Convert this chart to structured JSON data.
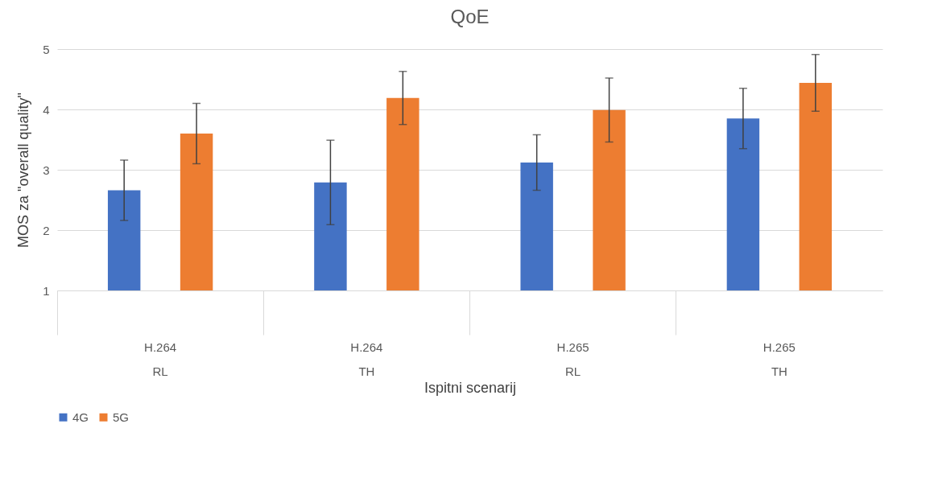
{
  "chart_data": {
    "type": "bar",
    "title": "QoE",
    "xlabel": "Ispitni scenarij",
    "ylabel": "MOS za \"overall quality\"",
    "categories": [
      "H.264\nRL",
      "H.264\nTH",
      "H.265\nRL",
      "H.265\nTH"
    ],
    "series": [
      {
        "name": "4G",
        "color": "#4472c4",
        "values": [
          2.66,
          2.79,
          3.12,
          3.85
        ],
        "errors": [
          0.5,
          0.7,
          0.46,
          0.5
        ]
      },
      {
        "name": "5G",
        "color": "#ed7d31",
        "values": [
          3.6,
          4.19,
          3.99,
          4.44
        ],
        "errors": [
          0.5,
          0.44,
          0.53,
          0.47
        ]
      }
    ],
    "ylim": [
      1,
      5
    ],
    "yticks": [
      1,
      2,
      3,
      4,
      5
    ],
    "grid": "y",
    "legend": "bottom"
  }
}
